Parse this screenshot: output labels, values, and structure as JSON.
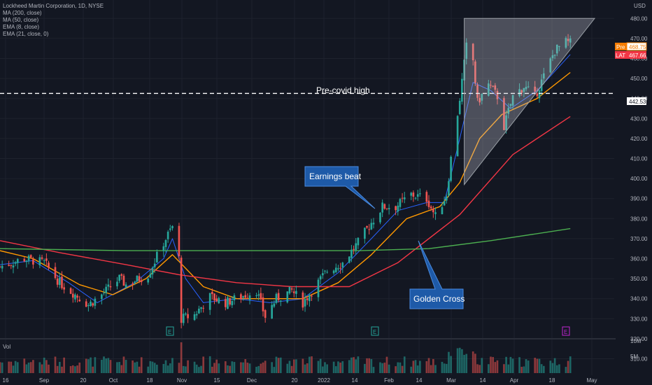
{
  "header": {
    "symbol_line": "Lockheed Martin Corporation, 1D, NYSE",
    "indicators": [
      "MA (200, close)",
      "MA (50, close)",
      "EMA (8, close)",
      "EMA (21, close, 0)"
    ]
  },
  "price_axis": {
    "currency": "USD",
    "ticks": [
      "480.00",
      "470.00",
      "460.00",
      "450.00",
      "440.00",
      "430.00",
      "420.00",
      "410.00",
      "400.00",
      "390.00",
      "380.00",
      "370.00",
      "360.00",
      "350.00",
      "340.00",
      "330.00",
      "320.00",
      "310.00"
    ]
  },
  "time_axis": {
    "labels": [
      "16",
      "Sep",
      "20",
      "Oct",
      "18",
      "Nov",
      "15",
      "Dec",
      "20",
      "2022",
      "14",
      "Feb",
      "14",
      "Mar",
      "14",
      "Apr",
      "18",
      "May"
    ]
  },
  "price_tags": {
    "pre": {
      "label": "Pre",
      "value": "468.75"
    },
    "last": {
      "label": "LAT",
      "value": "467.66"
    },
    "line": {
      "value": "442.53"
    }
  },
  "annotations": {
    "pre_covid_high": "Pre-covid high",
    "earnings_beat": "Earnings beat",
    "golden_cross": "Golden Cross",
    "earnings_markers": [
      "E",
      "E",
      "E"
    ]
  },
  "volume": {
    "title": "Vol",
    "ticks": [
      "10M",
      "5M"
    ]
  },
  "colors": {
    "up": "#26a69a",
    "down": "#ef5350",
    "ema8": "#2962ff",
    "ema21": "#ff9800",
    "ma50": "#f23645",
    "ma200": "#4caf50",
    "callout": "#1e5aa8",
    "pre_tag": "#f57c00",
    "last_tag": "#f23645"
  },
  "chart_data": {
    "type": "candlestick",
    "title": "Lockheed Martin Corporation, 1D, NYSE",
    "ylabel": "USD",
    "ylim": [
      308,
      484
    ],
    "grid": true,
    "x_range": [
      "2021-08-05",
      "2022-05-01"
    ],
    "price_path": [
      [
        "2021-08-05",
        356
      ],
      [
        "2021-08-16",
        360
      ],
      [
        "2021-08-25",
        358
      ],
      [
        "2021-09-01",
        348
      ],
      [
        "2021-09-14",
        337
      ],
      [
        "2021-09-20",
        342
      ],
      [
        "2021-09-28",
        350
      ],
      [
        "2021-10-01",
        347
      ],
      [
        "2021-10-11",
        352
      ],
      [
        "2021-10-18",
        368
      ],
      [
        "2021-10-22",
        376
      ],
      [
        "2021-10-25",
        360
      ],
      [
        "2021-10-26",
        330
      ],
      [
        "2021-11-01",
        332
      ],
      [
        "2021-11-08",
        341
      ],
      [
        "2021-11-15",
        338
      ],
      [
        "2021-11-22",
        341
      ],
      [
        "2021-11-29",
        344
      ],
      [
        "2021-12-03",
        331
      ],
      [
        "2021-12-08",
        340
      ],
      [
        "2021-12-15",
        344
      ],
      [
        "2021-12-20",
        338
      ],
      [
        "2021-12-31",
        354
      ],
      [
        "2022-01-07",
        358
      ],
      [
        "2022-01-14",
        368
      ],
      [
        "2022-01-20",
        378
      ],
      [
        "2022-01-25",
        386
      ],
      [
        "2022-01-31",
        386
      ],
      [
        "2022-02-07",
        392
      ],
      [
        "2022-02-14",
        390
      ],
      [
        "2022-02-18",
        381
      ],
      [
        "2022-02-23",
        392
      ],
      [
        "2022-02-25",
        410
      ],
      [
        "2022-03-01",
        440
      ],
      [
        "2022-03-04",
        466
      ],
      [
        "2022-03-07",
        459
      ],
      [
        "2022-03-09",
        438
      ],
      [
        "2022-03-14",
        447
      ],
      [
        "2022-03-18",
        441
      ],
      [
        "2022-03-21",
        426
      ],
      [
        "2022-03-25",
        441
      ],
      [
        "2022-03-30",
        446
      ],
      [
        "2022-04-04",
        441
      ],
      [
        "2022-04-08",
        451
      ],
      [
        "2022-04-13",
        464
      ],
      [
        "2022-04-18",
        468
      ],
      [
        "2022-04-20",
        467.66
      ]
    ],
    "series": [
      {
        "name": "EMA (8, close)",
        "points": [
          [
            "2021-08-05",
            357
          ],
          [
            "2021-08-20",
            359
          ],
          [
            "2021-09-05",
            348
          ],
          [
            "2021-09-18",
            338
          ],
          [
            "2021-10-05",
            348
          ],
          [
            "2021-10-18",
            360
          ],
          [
            "2021-10-22",
            370
          ],
          [
            "2021-10-28",
            350
          ],
          [
            "2021-11-05",
            338
          ],
          [
            "2021-11-20",
            340
          ],
          [
            "2021-12-05",
            338
          ],
          [
            "2021-12-20",
            340
          ],
          [
            "2022-01-05",
            353
          ],
          [
            "2022-01-20",
            370
          ],
          [
            "2022-02-01",
            384
          ],
          [
            "2022-02-14",
            388
          ],
          [
            "2022-02-22",
            388
          ],
          [
            "2022-03-01",
            420
          ],
          [
            "2022-03-07",
            448
          ],
          [
            "2022-03-15",
            444
          ],
          [
            "2022-03-24",
            435
          ],
          [
            "2022-04-05",
            444
          ],
          [
            "2022-04-20",
            462
          ]
        ]
      },
      {
        "name": "EMA (21, close, 0)",
        "points": [
          [
            "2021-08-05",
            364
          ],
          [
            "2021-08-20",
            360
          ],
          [
            "2021-09-10",
            347
          ],
          [
            "2021-09-25",
            342
          ],
          [
            "2021-10-10",
            350
          ],
          [
            "2021-10-22",
            362
          ],
          [
            "2021-11-05",
            346
          ],
          [
            "2021-11-20",
            340
          ],
          [
            "2021-12-05",
            340
          ],
          [
            "2021-12-20",
            340
          ],
          [
            "2022-01-05",
            348
          ],
          [
            "2022-01-20",
            362
          ],
          [
            "2022-02-05",
            380
          ],
          [
            "2022-02-20",
            386
          ],
          [
            "2022-03-01",
            398
          ],
          [
            "2022-03-10",
            420
          ],
          [
            "2022-03-20",
            432
          ],
          [
            "2022-04-05",
            440
          ],
          [
            "2022-04-20",
            453
          ]
        ]
      },
      {
        "name": "MA (50, close)",
        "points": [
          [
            "2021-08-05",
            369
          ],
          [
            "2021-09-01",
            363
          ],
          [
            "2021-10-01",
            357
          ],
          [
            "2021-10-25",
            352
          ],
          [
            "2021-11-20",
            348
          ],
          [
            "2021-12-15",
            346
          ],
          [
            "2022-01-10",
            346
          ],
          [
            "2022-02-01",
            358
          ],
          [
            "2022-03-01",
            382
          ],
          [
            "2022-03-25",
            412
          ],
          [
            "2022-04-20",
            431
          ]
        ]
      },
      {
        "name": "MA (200, close)",
        "points": [
          [
            "2021-08-05",
            365
          ],
          [
            "2021-10-01",
            364
          ],
          [
            "2021-12-01",
            364
          ],
          [
            "2022-01-15",
            364
          ],
          [
            "2022-02-15",
            365
          ],
          [
            "2022-03-15",
            369
          ],
          [
            "2022-04-20",
            375
          ]
        ]
      }
    ],
    "horizontal_line": {
      "value": 442.53,
      "label": "Pre-covid high"
    },
    "triangle": [
      [
        "2022-03-03",
        480
      ],
      [
        "2022-05-01",
        480
      ],
      [
        "2022-03-03",
        397
      ]
    ],
    "callouts": [
      {
        "text": "Earnings beat",
        "date": "2022-01-26",
        "price": 379
      },
      {
        "text": "Golden Cross",
        "date": "2022-02-14",
        "price": 364
      }
    ],
    "earnings_dates": [
      "2021-10-26",
      "2022-01-25",
      "2022-04-19"
    ],
    "last": {
      "pre": 468.75,
      "close": 467.66
    },
    "volume_ylim": [
      0,
      10000000
    ]
  }
}
